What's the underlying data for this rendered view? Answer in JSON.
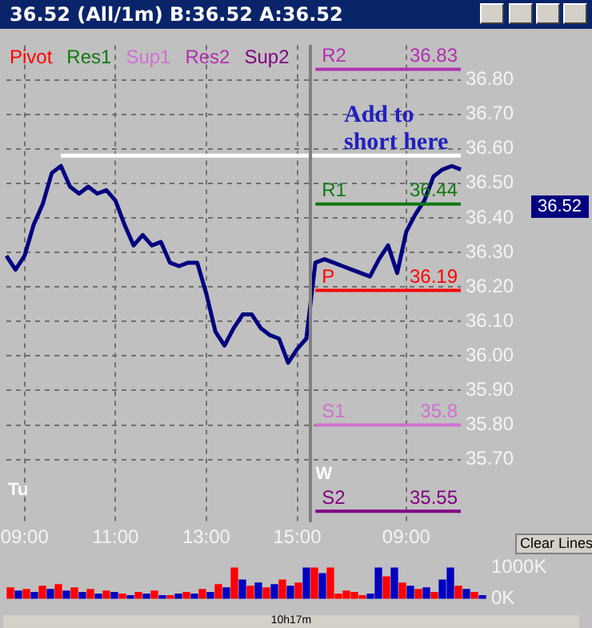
{
  "chart_data": [
    {
      "type": "line",
      "title": "36.52 (All/1m)  B:36.52 A:36.52",
      "legend": "top left",
      "grid": true,
      "marker": "none",
      "ylim": [
        35.52,
        36.9
      ],
      "yticks": [
        {
          "value": 35.7,
          "label": "35.70"
        },
        {
          "value": 35.8,
          "label": "35.80"
        },
        {
          "value": 35.9,
          "label": "35.90"
        },
        {
          "value": 36,
          "label": "36.00"
        },
        {
          "value": 36.1,
          "label": "36.10"
        },
        {
          "value": 36.2,
          "label": "36.20"
        },
        {
          "value": 36.3,
          "label": "36.30"
        },
        {
          "value": 36.4,
          "label": "36.40"
        },
        {
          "value": 36.5,
          "label": "36.50"
        },
        {
          "value": 36.6,
          "label": "36.60"
        },
        {
          "value": 36.7,
          "label": "36.70"
        },
        {
          "value": 36.8,
          "label": "36.80"
        }
      ],
      "categories": [
        null,
        null,
        "09:00",
        null,
        null,
        null,
        null,
        null,
        null,
        null,
        null,
        null,
        "11:00",
        null,
        null,
        null,
        null,
        null,
        null,
        null,
        null,
        null,
        "13:00",
        null,
        null,
        null,
        null,
        null,
        null,
        null,
        null,
        null,
        "15:00",
        null,
        null,
        null,
        null,
        null,
        null,
        null,
        null,
        null,
        null,
        null,
        "09:00",
        null,
        null,
        null,
        null,
        null,
        null
      ],
      "series": [
        {
          "color": "#ffffff",
          "values": [
            null,
            null,
            null,
            null,
            null,
            null,
            36.58,
            36.58,
            36.58,
            36.58,
            36.58,
            36.58,
            36.58,
            36.58,
            36.58,
            36.58,
            36.58,
            36.58,
            36.58,
            36.58,
            36.58,
            36.58,
            36.58,
            36.58,
            36.58,
            36.58,
            36.58,
            36.58,
            36.58,
            36.58,
            36.58,
            36.58,
            36.58,
            36.58,
            36.58,
            36.58,
            36.58,
            36.58,
            36.58,
            36.58,
            36.58,
            36.58,
            36.58,
            36.58,
            36.58,
            36.58,
            36.58,
            36.58,
            36.58,
            36.58,
            36.58
          ]
        },
        {
          "name": "Pivot",
          "color": "#ff0000",
          "values": [
            null,
            null,
            null,
            null,
            null,
            null,
            null,
            null,
            null,
            null,
            null,
            null,
            null,
            null,
            null,
            null,
            null,
            null,
            null,
            null,
            null,
            null,
            null,
            null,
            null,
            null,
            null,
            null,
            null,
            null,
            null,
            null,
            null,
            null,
            36.19,
            36.19,
            36.19,
            36.19,
            36.19,
            36.19,
            36.19,
            36.19,
            36.19,
            36.19,
            36.19,
            36.19,
            36.19,
            36.19,
            36.19,
            36.19,
            36.19
          ]
        },
        {
          "name": "Res1",
          "color": "#107810",
          "values": [
            null,
            null,
            null,
            null,
            null,
            null,
            null,
            null,
            null,
            null,
            null,
            null,
            null,
            null,
            null,
            null,
            null,
            null,
            null,
            null,
            null,
            null,
            null,
            null,
            null,
            null,
            null,
            null,
            null,
            null,
            null,
            null,
            null,
            null,
            36.44,
            36.44,
            36.44,
            36.44,
            36.44,
            36.44,
            36.44,
            36.44,
            36.44,
            36.44,
            36.44,
            36.44,
            36.44,
            36.44,
            36.44,
            36.44,
            36.44
          ]
        },
        {
          "name": "Sup1",
          "color": "#d070d0",
          "values": [
            null,
            null,
            null,
            null,
            null,
            null,
            null,
            null,
            null,
            null,
            null,
            null,
            null,
            null,
            null,
            null,
            null,
            null,
            null,
            null,
            null,
            null,
            null,
            null,
            null,
            null,
            null,
            null,
            null,
            null,
            null,
            null,
            null,
            null,
            35.8,
            35.8,
            35.8,
            35.8,
            35.8,
            35.8,
            35.8,
            35.8,
            35.8,
            35.8,
            35.8,
            35.8,
            35.8,
            35.8,
            35.8,
            35.8,
            35.8
          ]
        },
        {
          "name": "Res2",
          "color": "#b030b0",
          "values": [
            null,
            null,
            null,
            null,
            null,
            null,
            null,
            null,
            null,
            null,
            null,
            null,
            null,
            null,
            null,
            null,
            null,
            null,
            null,
            null,
            null,
            null,
            null,
            null,
            null,
            null,
            null,
            null,
            null,
            null,
            null,
            null,
            null,
            null,
            36.83,
            36.83,
            36.83,
            36.83,
            36.83,
            36.83,
            36.83,
            36.83,
            36.83,
            36.83,
            36.83,
            36.83,
            36.83,
            36.83,
            36.83,
            36.83,
            36.83
          ]
        },
        {
          "name": "Sup2",
          "color": "#800080",
          "values": [
            null,
            null,
            null,
            null,
            null,
            null,
            null,
            null,
            null,
            null,
            null,
            null,
            null,
            null,
            null,
            null,
            null,
            null,
            null,
            null,
            null,
            null,
            null,
            null,
            null,
            null,
            null,
            null,
            null,
            null,
            null,
            null,
            null,
            null,
            35.55,
            35.55,
            35.55,
            35.55,
            35.55,
            35.55,
            35.55,
            35.55,
            35.55,
            35.55,
            35.55,
            35.55,
            35.55,
            35.55,
            35.55,
            35.55,
            35.55
          ]
        },
        {
          "color": "#000080",
          "values": [
            36.29,
            36.25,
            36.29,
            36.38,
            36.44,
            36.53,
            36.55,
            36.49,
            36.47,
            36.49,
            36.47,
            36.48,
            36.45,
            36.38,
            36.32,
            36.35,
            36.32,
            36.33,
            36.27,
            36.26,
            36.27,
            36.27,
            36.18,
            36.07,
            36.03,
            36.08,
            36.12,
            36.12,
            36.08,
            36.06,
            36.05,
            35.98,
            36.02,
            36.05,
            36.27,
            36.28,
            36.27,
            36.26,
            36.25,
            36.24,
            36.23,
            36.28,
            36.32,
            36.24,
            36.36,
            36.41,
            36.45,
            36.52,
            36.54,
            36.55,
            36.54
          ]
        }
      ],
      "annotations": [
        "Add to short here",
        "Tu",
        "Clear Lines",
        "W",
        {
          "text": "R2",
          "y": 36.83
        },
        {
          "text": "36.83",
          "y": 36.83
        },
        {
          "text": "R1",
          "y": 36.44
        },
        {
          "text": "36.44",
          "y": 36.44
        },
        {
          "text": "P",
          "y": 36.19
        },
        {
          "text": "36.19",
          "y": 36.19
        },
        {
          "text": "S1",
          "y": 35.8
        },
        {
          "text": "35.8",
          "y": 35.8
        },
        {
          "text": "S2",
          "y": 35.55
        },
        {
          "text": "35.55",
          "y": 35.55
        },
        "36.52"
      ]
    },
    {
      "type": "bar",
      "tick_labels": "y",
      "ylim": [
        0,
        1000000
      ],
      "yticks": [
        {
          "value": 0,
          "label": "0K"
        },
        {
          "value": 1000000,
          "label": "1000K"
        }
      ],
      "categories": [
        null,
        null,
        null,
        null,
        null,
        null,
        null,
        null,
        null,
        null,
        null,
        null,
        null,
        null,
        null,
        null,
        null,
        null,
        null,
        null,
        null,
        null,
        null,
        null,
        null,
        null,
        null,
        null,
        null,
        null,
        null,
        null,
        null,
        null,
        null,
        null,
        null,
        null,
        null,
        null,
        null,
        null,
        null,
        null,
        null,
        null,
        null,
        null,
        null,
        null,
        null,
        null,
        null,
        null,
        null,
        null,
        null,
        null,
        null,
        null
      ],
      "values": [
        350000,
        250000,
        300000,
        200000,
        400000,
        300000,
        450000,
        250000,
        350000,
        200000,
        300000,
        150000,
        250000,
        200000,
        150000,
        100000,
        200000,
        150000,
        250000,
        100000,
        100000,
        150000,
        200000,
        150000,
        300000,
        200000,
        450000,
        350000,
        1000000,
        600000,
        400000,
        500000,
        350000,
        450000,
        600000,
        400000,
        500000,
        1000000,
        1000000,
        800000,
        1000000,
        150000,
        250000,
        200000,
        100000,
        150000,
        1000000,
        700000,
        1000000,
        500000,
        400000,
        300000,
        350000,
        200000,
        600000,
        1000000,
        400000,
        300000,
        200000,
        100000
      ],
      "colors": [
        "#ff0000",
        "#0000c0",
        "#ff0000",
        "#0000c0",
        "#ff0000",
        "#0000c0",
        "#ff0000",
        "#0000c0",
        "#ff0000",
        "#0000c0",
        "#ff0000",
        "#0000c0",
        "#ff0000",
        "#0000c0",
        "#ff0000",
        "#0000c0",
        "#ff0000",
        "#0000c0",
        "#ff0000",
        "#0000c0",
        "#ff0000",
        "#0000c0",
        "#ff0000",
        "#0000c0",
        "#ff0000",
        "#0000c0",
        "#ff0000",
        "#0000c0",
        "#ff0000",
        "#0000c0",
        "#ff0000",
        "#0000c0",
        "#ff0000",
        "#0000c0",
        "#ff0000",
        "#0000c0",
        "#ff0000",
        "#0000c0",
        "#ff0000",
        "#0000c0",
        "#ff0000",
        "#ff0000",
        "#ff0000",
        "#ff0000",
        "#ff0000",
        "#0000c0",
        "#0000c0",
        "#ff0000",
        "#0000c0",
        "#ff0000",
        "#0000c0",
        "#ff0000",
        "#0000c0",
        "#ff0000",
        "#0000c0",
        "#0000c0",
        "#ff0000",
        "#0000c0",
        "#ff0000",
        "#0000c0"
      ],
      "annotations": [
        "10h17m"
      ]
    }
  ]
}
